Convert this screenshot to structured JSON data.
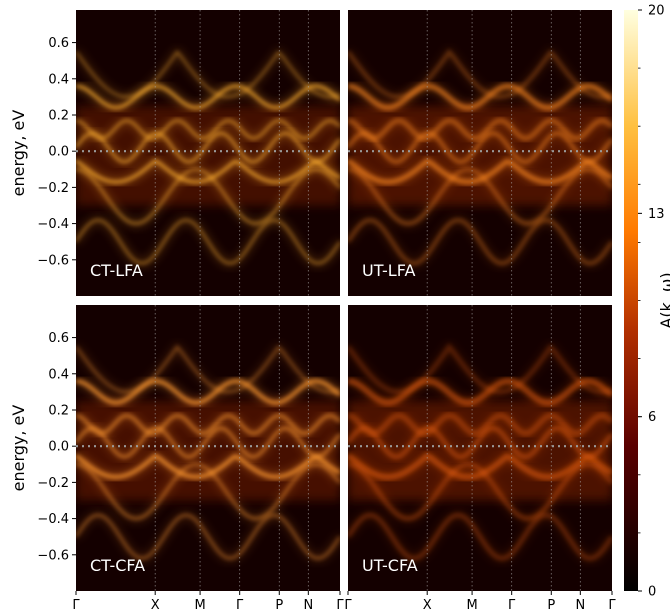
{
  "chart_data": {
    "type": "heatmap",
    "panels": [
      {
        "label": "CT-LFA",
        "grid": "top-left"
      },
      {
        "label": "UT-LFA",
        "grid": "top-right"
      },
      {
        "label": "CT-CFA",
        "grid": "bottom-left"
      },
      {
        "label": "UT-CFA",
        "grid": "bottom-right"
      }
    ],
    "ylabel": "energy, eV",
    "ylim": [
      -0.8,
      0.78
    ],
    "yticks": [
      0.6,
      0.4,
      0.2,
      0.0,
      -0.2,
      -0.4,
      -0.6
    ],
    "ytick_labels": [
      "0.6",
      "0.4",
      "0.2",
      "0.0",
      "−0.2",
      "−0.4",
      "−0.6"
    ],
    "kpath": [
      "Γ",
      "X",
      "M",
      "Γ",
      "P",
      "N",
      "Γ"
    ],
    "kpath_positions": [
      0.0,
      0.3,
      0.47,
      0.62,
      0.77,
      0.88,
      1.0
    ],
    "fermi_level": 0.0,
    "colorbar": {
      "label": "A(k, ω)",
      "range": [
        0,
        20
      ],
      "ticks": [
        0,
        6,
        13,
        20
      ],
      "tick_labels": [
        "0",
        "6",
        "13",
        "20"
      ],
      "colormap": "afmhot"
    }
  }
}
